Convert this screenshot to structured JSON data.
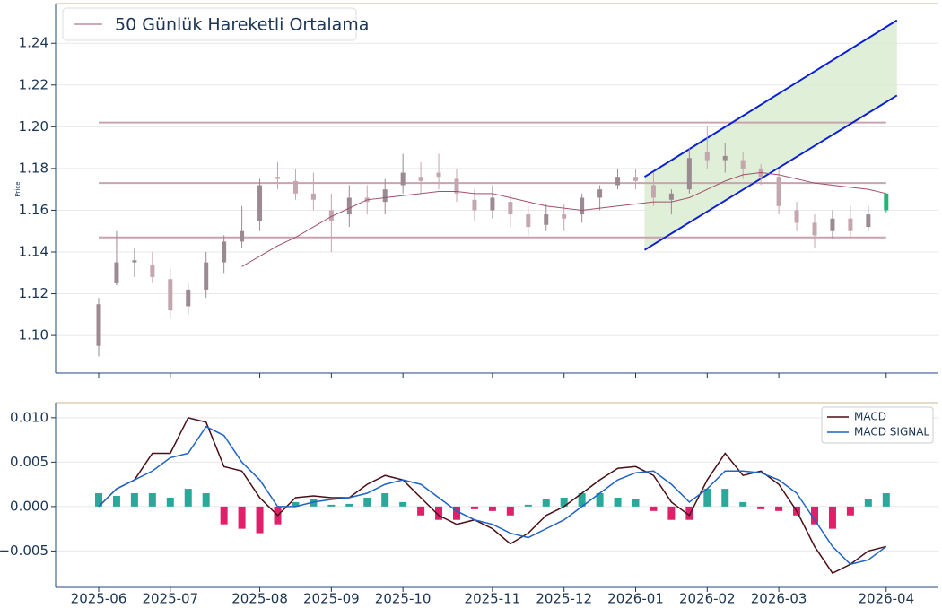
{
  "chart_data": [
    {
      "type": "candlestick",
      "y_label": "Price",
      "open": [
        1.095,
        1.125,
        1.135,
        1.134,
        1.127,
        1.114,
        1.122,
        1.135,
        1.145,
        1.155,
        1.176,
        1.174,
        1.168,
        1.16,
        1.158,
        1.166,
        1.164,
        1.172,
        1.176,
        1.178,
        1.175,
        1.165,
        1.16,
        1.164,
        1.158,
        1.153,
        1.158,
        1.158,
        1.166,
        1.172,
        1.176,
        1.172,
        1.165,
        1.17,
        1.188,
        1.184,
        1.184,
        1.18,
        1.176,
        1.16,
        1.154,
        1.15,
        1.156,
        1.152,
        1.16
      ],
      "high": [
        1.118,
        1.15,
        1.142,
        1.14,
        1.132,
        1.125,
        1.14,
        1.148,
        1.162,
        1.175,
        1.183,
        1.18,
        1.178,
        1.168,
        1.172,
        1.172,
        1.175,
        1.187,
        1.183,
        1.187,
        1.18,
        1.17,
        1.172,
        1.168,
        1.162,
        1.163,
        1.163,
        1.168,
        1.172,
        1.18,
        1.18,
        1.178,
        1.17,
        1.19,
        1.2,
        1.192,
        1.188,
        1.182,
        1.18,
        1.164,
        1.158,
        1.16,
        1.162,
        1.162,
        1.168
      ],
      "low": [
        1.09,
        1.124,
        1.128,
        1.125,
        1.108,
        1.11,
        1.118,
        1.13,
        1.142,
        1.15,
        1.17,
        1.165,
        1.16,
        1.14,
        1.152,
        1.158,
        1.158,
        1.168,
        1.168,
        1.17,
        1.164,
        1.155,
        1.156,
        1.152,
        1.148,
        1.15,
        1.15,
        1.154,
        1.16,
        1.17,
        1.17,
        1.162,
        1.158,
        1.168,
        1.18,
        1.178,
        1.175,
        1.172,
        1.158,
        1.15,
        1.142,
        1.146,
        1.146,
        1.15,
        1.159
      ],
      "close": [
        1.115,
        1.135,
        1.136,
        1.128,
        1.112,
        1.122,
        1.135,
        1.145,
        1.15,
        1.172,
        1.175,
        1.168,
        1.165,
        1.155,
        1.166,
        1.164,
        1.17,
        1.178,
        1.174,
        1.176,
        1.168,
        1.16,
        1.166,
        1.158,
        1.152,
        1.158,
        1.156,
        1.166,
        1.17,
        1.176,
        1.174,
        1.166,
        1.168,
        1.185,
        1.184,
        1.186,
        1.18,
        1.176,
        1.162,
        1.154,
        1.148,
        1.156,
        1.15,
        1.158,
        1.168
      ],
      "up_color": "#9c8a92",
      "down_color": "#c4a6ae",
      "last_color": "#22b573",
      "moving_average": {
        "name": "50 Günlük Hareketli Ortalama",
        "color": "#a0506e",
        "values": [
          null,
          null,
          null,
          null,
          null,
          null,
          null,
          null,
          1.133,
          1.138,
          1.143,
          1.147,
          1.152,
          1.157,
          1.161,
          1.165,
          1.166,
          1.167,
          1.168,
          1.169,
          1.169,
          1.168,
          1.168,
          1.166,
          1.164,
          1.162,
          1.161,
          1.16,
          1.161,
          1.162,
          1.163,
          1.164,
          1.164,
          1.166,
          1.17,
          1.174,
          1.177,
          1.178,
          1.177,
          1.175,
          1.173,
          1.172,
          1.171,
          1.17,
          1.168
        ]
      },
      "levels": [
        1.202,
        1.173,
        1.147
      ],
      "level_color": "#c9a3ad",
      "channel": {
        "upper": [
          1.176,
          1.251
        ],
        "lower": [
          1.141,
          1.215
        ],
        "color": "#0a1fd6",
        "fill": "#dcedd4"
      },
      "ylim": [
        1.082,
        1.259
      ],
      "yticks": [
        {
          "value": 1.1,
          "label": "1.10"
        },
        {
          "value": 1.12,
          "label": "1.12"
        },
        {
          "value": 1.14,
          "label": "1.14"
        },
        {
          "value": 1.16,
          "label": "1.16"
        },
        {
          "value": 1.18,
          "label": "1.18"
        },
        {
          "value": 1.2,
          "label": "1.20"
        },
        {
          "value": 1.22,
          "label": "1.22"
        },
        {
          "value": 1.24,
          "label": "1.24"
        }
      ],
      "grid": true,
      "legend": "upper left"
    },
    {
      "type": "macd",
      "categories": [
        "2025-06",
        null,
        null,
        null,
        "2025-07",
        null,
        null,
        null,
        null,
        "2025-08",
        null,
        null,
        null,
        "2025-09",
        null,
        null,
        null,
        "2025-10",
        null,
        null,
        null,
        null,
        "2025-11",
        null,
        null,
        null,
        "2025-12",
        null,
        null,
        null,
        "2026-01",
        null,
        null,
        null,
        "2026-02",
        null,
        null,
        null,
        "2026-03",
        null,
        null,
        null,
        null,
        null,
        "2026-04"
      ],
      "series": [
        {
          "name": "MACD",
          "color": "#4a0f16",
          "values": [
            0.0,
            0.002,
            0.003,
            0.006,
            0.006,
            0.01,
            0.0095,
            0.0045,
            0.004,
            0.001,
            -0.001,
            0.001,
            0.0012,
            0.001,
            0.001,
            0.0025,
            0.0035,
            0.003,
            0.001,
            -0.001,
            -0.002,
            -0.0015,
            -0.0025,
            -0.0042,
            -0.003,
            -0.001,
            0.0,
            0.0015,
            0.003,
            0.0043,
            0.0045,
            0.0035,
            0.0005,
            -0.001,
            0.003,
            0.006,
            0.0035,
            0.004,
            0.0025,
            -0.0005,
            -0.0045,
            -0.0075,
            -0.0065,
            -0.005,
            -0.0045
          ]
        },
        {
          "name": "MACD SIGNAL",
          "color": "#1f63c4",
          "values": [
            0.0,
            0.002,
            0.003,
            0.004,
            0.0055,
            0.006,
            0.009,
            0.008,
            0.005,
            0.003,
            0.0,
            0.0,
            0.0005,
            0.0008,
            0.001,
            0.0015,
            0.0025,
            0.003,
            0.0025,
            0.001,
            -0.0005,
            -0.0015,
            -0.002,
            -0.003,
            -0.0035,
            -0.0025,
            -0.0015,
            0.0,
            0.0015,
            0.003,
            0.0038,
            0.004,
            0.0025,
            0.0005,
            0.002,
            0.004,
            0.004,
            0.0038,
            0.003,
            0.0015,
            -0.0015,
            -0.0045,
            -0.0065,
            -0.006,
            -0.0045
          ]
        }
      ],
      "histogram": {
        "positive_color": "#2aa89a",
        "negative_color": "#e0206a",
        "values": [
          0.0015,
          0.0012,
          0.0015,
          0.0015,
          0.001,
          0.002,
          0.0015,
          -0.002,
          -0.0025,
          -0.003,
          -0.002,
          0.0005,
          0.0008,
          0.0002,
          0.0003,
          0.001,
          0.0015,
          0.0005,
          -0.001,
          -0.0015,
          -0.0015,
          -0.0003,
          -0.0005,
          -0.001,
          0.0002,
          0.0008,
          0.001,
          0.0015,
          0.0015,
          0.001,
          0.0008,
          -0.0005,
          -0.0015,
          -0.0015,
          0.002,
          0.002,
          0.0005,
          -0.0003,
          -0.0005,
          -0.001,
          -0.002,
          -0.0025,
          -0.001,
          0.0008,
          0.0015
        ]
      },
      "ylim": [
        -0.0091,
        0.0117
      ],
      "yticks": [
        {
          "value": -0.005,
          "label": "−0.005"
        },
        {
          "value": 0,
          "label": "0.000"
        },
        {
          "value": 0.005,
          "label": "0.005"
        },
        {
          "value": 0.01,
          "label": "0.010"
        }
      ],
      "grid": true,
      "legend": "upper right"
    }
  ]
}
